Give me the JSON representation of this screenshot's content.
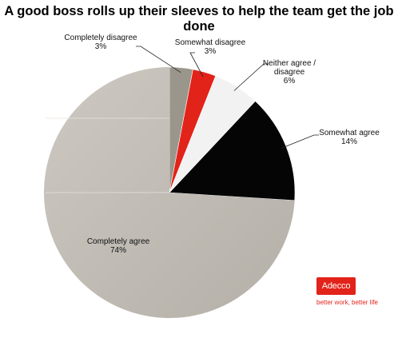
{
  "title": "A good boss rolls up their sleeves to help the team get the job done",
  "brand": {
    "name": "Adecco",
    "tagline": "better work, better life",
    "color": "#e2231a"
  },
  "chart_data": {
    "type": "pie",
    "title": "A good boss rolls up their sleeves to help the team get the job done",
    "slices": [
      {
        "label": "Completely disagree",
        "value": 3,
        "display": "3%",
        "color": "#9b968b"
      },
      {
        "label": "Somewhat disagree",
        "value": 3,
        "display": "3%",
        "color": "#e2231a"
      },
      {
        "label": "Neither agree / disagree",
        "value": 6,
        "display": "6%",
        "color": "#f2f2f2"
      },
      {
        "label": "Somewhat agree",
        "value": 14,
        "display": "14%",
        "color": "#050505"
      },
      {
        "label": "Completely agree",
        "value": 74,
        "display": "74%",
        "color": "#c3beb7"
      }
    ],
    "start": "12 o'clock, clockwise",
    "legend": "none (leader-line labels)"
  }
}
